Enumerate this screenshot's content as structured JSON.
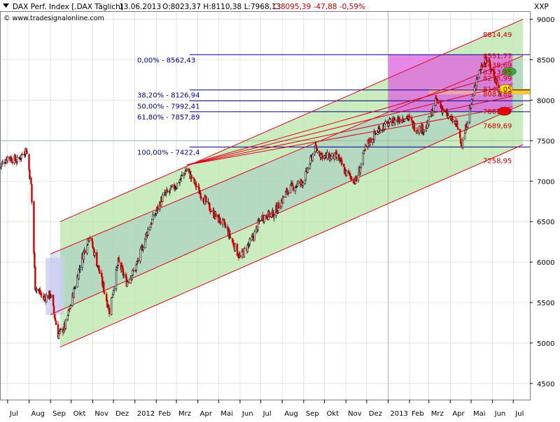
{
  "header": {
    "instrument": "DAX Perf. Index [.DAX  Täglich]",
    "date": "13.06.2013",
    "quote": "O:8023,37 H:8110,38 L:7968,13",
    "close_change": "C:8095,39 -47,88 -0,59%",
    "copyright": "© www.tradesignalonline.com",
    "axis_unit": "XXP"
  },
  "colors": {
    "price_up": "#000000",
    "price_down": "#cc0000",
    "channel_fill": "#b8e6a8",
    "channel_line": "#e0001b",
    "fib_line": "#00008b",
    "fib_text": "#00008b",
    "level_text": "#cc0000",
    "highlight_zone": "#e060e0",
    "grid": "#c8d8c8"
  },
  "chart_data": {
    "type": "candlestick",
    "ylim": [
      4300,
      9100
    ],
    "y_ticks": [
      4500,
      5000,
      5500,
      6000,
      6500,
      7000,
      7500,
      8000,
      8500,
      9000
    ],
    "x_ticks": [
      "Jul",
      "Aug",
      "Sep",
      "Okt",
      "Nov",
      "Dez",
      "2012",
      "Feb",
      "Mrz",
      "Apr",
      "Mai",
      "Jun",
      "Jul",
      "Aug",
      "Sep",
      "Okt",
      "Nov",
      "Dez",
      "2013",
      "Feb",
      "Mrz",
      "Apr",
      "Mai",
      "Jun",
      "Jul"
    ],
    "x_range": [
      "2011-06-20",
      "2013-07-25"
    ],
    "x_ticks_dates": [
      "2011-07-01",
      "2011-08-01",
      "2011-09-01",
      "2011-10-01",
      "2011-11-01",
      "2011-12-01",
      "2012-01-01",
      "2012-02-01",
      "2012-03-01",
      "2012-04-01",
      "2012-05-01",
      "2012-06-01",
      "2012-07-01",
      "2012-08-01",
      "2012-09-01",
      "2012-10-01",
      "2012-11-01",
      "2012-12-01",
      "2013-01-01",
      "2013-02-01",
      "2013-03-01",
      "2013-04-01",
      "2013-05-01",
      "2013-06-01",
      "2013-07-01"
    ],
    "price_path": [
      [
        "2011-06-20",
        7180
      ],
      [
        "2011-07-01",
        7300
      ],
      [
        "2011-07-15",
        7250
      ],
      [
        "2011-07-28",
        7400
      ],
      [
        "2011-08-04",
        6950
      ],
      [
        "2011-08-10",
        5700
      ],
      [
        "2011-08-22",
        5550
      ],
      [
        "2011-09-01",
        5600
      ],
      [
        "2011-09-12",
        5100
      ],
      [
        "2011-09-22",
        5200
      ],
      [
        "2011-10-01",
        5500
      ],
      [
        "2011-10-15",
        6000
      ],
      [
        "2011-10-27",
        6340
      ],
      [
        "2011-11-10",
        5900
      ],
      [
        "2011-11-25",
        5400
      ],
      [
        "2011-12-08",
        6000
      ],
      [
        "2011-12-20",
        5750
      ],
      [
        "2012-01-01",
        5900
      ],
      [
        "2012-01-20",
        6400
      ],
      [
        "2012-02-10",
        6800
      ],
      [
        "2012-03-01",
        6950
      ],
      [
        "2012-03-16",
        7150
      ],
      [
        "2012-04-01",
        6900
      ],
      [
        "2012-04-23",
        6600
      ],
      [
        "2012-05-10",
        6450
      ],
      [
        "2012-06-01",
        6050
      ],
      [
        "2012-06-20",
        6300
      ],
      [
        "2012-07-01",
        6550
      ],
      [
        "2012-07-20",
        6600
      ],
      [
        "2012-08-10",
        6900
      ],
      [
        "2012-09-01",
        7000
      ],
      [
        "2012-09-17",
        7400
      ],
      [
        "2012-10-01",
        7300
      ],
      [
        "2012-10-20",
        7300
      ],
      [
        "2012-11-01",
        7100
      ],
      [
        "2012-11-16",
        7000
      ],
      [
        "2012-12-01",
        7450
      ],
      [
        "2012-12-20",
        7650
      ],
      [
        "2013-01-10",
        7750
      ],
      [
        "2013-01-28",
        7800
      ],
      [
        "2013-02-10",
        7650
      ],
      [
        "2013-02-25",
        7650
      ],
      [
        "2013-03-12",
        8000
      ],
      [
        "2013-03-28",
        7800
      ],
      [
        "2013-04-10",
        7700
      ],
      [
        "2013-04-18",
        7450
      ],
      [
        "2013-05-01",
        7950
      ],
      [
        "2013-05-10",
        8300
      ],
      [
        "2013-05-22",
        8530
      ],
      [
        "2013-06-01",
        8350
      ],
      [
        "2013-06-13",
        8095
      ]
    ],
    "fibonacci": [
      {
        "label": "0,00% - 8562,43",
        "value": 8562.43
      },
      {
        "label": "38,20% - 8126,94",
        "value": 8126.94
      },
      {
        "label": "50,00% - 7992,41",
        "value": 7992.41
      },
      {
        "label": "61,80% - 7857,89",
        "value": 7857.89
      },
      {
        "label": "100,00% - 7422,4",
        "value": 7422.4
      }
    ],
    "level_labels": [
      {
        "label": "8814,49",
        "value": 8814.49
      },
      {
        "label": "8551,77",
        "value": 8551.77
      },
      {
        "label": "8438,69",
        "value": 8438.69
      },
      {
        "label": "8353,95",
        "value": 8353.95
      },
      {
        "label": "8275,99",
        "value": 8275.99
      },
      {
        "label": "8140,05",
        "value": 8140.05
      },
      {
        "label": "8081,88",
        "value": 8081.88
      },
      {
        "label": "7863,87",
        "value": 7863.87
      },
      {
        "label": "7689,69",
        "value": 7689.69
      },
      {
        "label": "7258,95",
        "value": 7258.95
      }
    ],
    "channel": {
      "upper": [
        [
          "2011-09-15",
          6500
        ],
        [
          "2013-07-15",
          9000
        ]
      ],
      "mid_upper": [
        [
          "2011-09-01",
          6100
        ],
        [
          "2013-07-15",
          8550
        ]
      ],
      "mid_lower": [
        [
          "2011-09-01",
          5350
        ],
        [
          "2013-07-15",
          7950
        ]
      ],
      "lower": [
        [
          "2011-09-15",
          4950
        ],
        [
          "2013-07-15",
          7450
        ]
      ]
    },
    "fan_lines": [
      {
        "from": [
          "2012-03-16",
          7200
        ],
        "to": [
          "2013-06-30",
          8350
        ]
      },
      {
        "from": [
          "2012-03-16",
          7200
        ],
        "to": [
          "2013-06-30",
          8200
        ]
      },
      {
        "from": [
          "2012-03-16",
          7200
        ],
        "to": [
          "2013-06-30",
          8050
        ]
      },
      {
        "from": [
          "2012-03-16",
          7200
        ],
        "to": [
          "2013-06-30",
          7920
        ]
      }
    ],
    "zone": {
      "from": "2013-01-01",
      "to": "2013-06-30",
      "top": 8562.43,
      "bottom": 7857.89
    },
    "vertical_marker": "2013-01-01",
    "horizontal_marker": 7500,
    "markers": [
      {
        "color": "#33aa33",
        "date": "2013-06-25",
        "value": 8353.95
      },
      {
        "color": "#ffee00",
        "date": "2013-06-20",
        "value": 8140.05
      },
      {
        "color": "#ee0000",
        "date": "2013-06-18",
        "value": 7863.87
      }
    ]
  }
}
